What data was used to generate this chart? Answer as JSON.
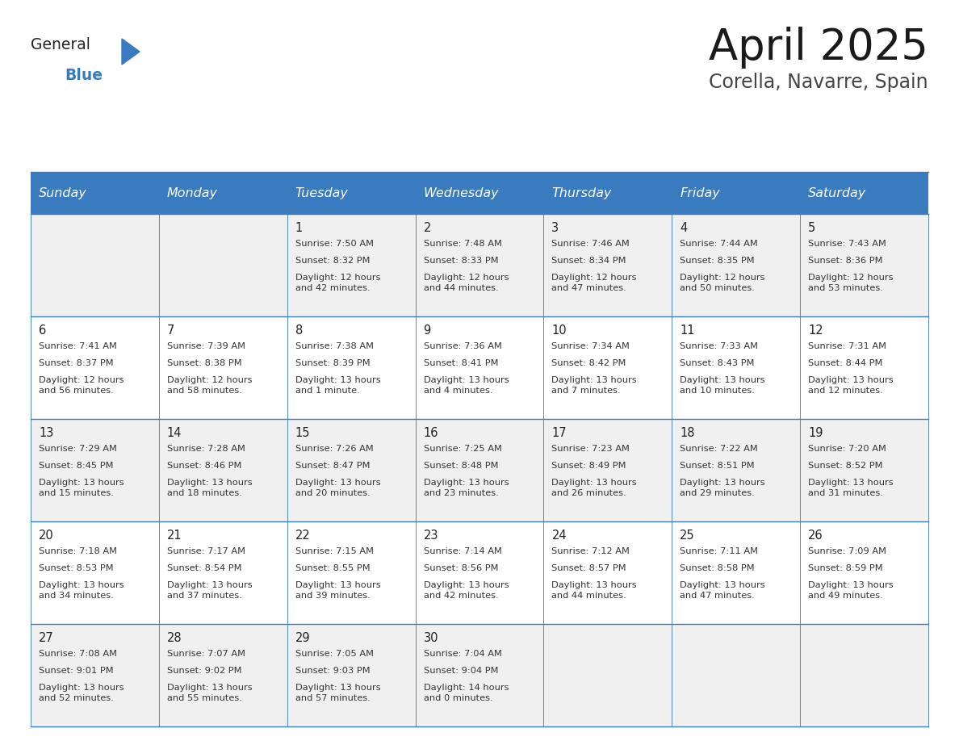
{
  "title": "April 2025",
  "subtitle": "Corella, Navarre, Spain",
  "header_bg": "#3a7abf",
  "header_text_color": "#ffffff",
  "cell_bg_odd": "#f0f0f0",
  "cell_bg_even": "#ffffff",
  "day_headers": [
    "Sunday",
    "Monday",
    "Tuesday",
    "Wednesday",
    "Thursday",
    "Friday",
    "Saturday"
  ],
  "weeks": [
    [
      {
        "day": "",
        "sunrise": "",
        "sunset": "",
        "daylight": ""
      },
      {
        "day": "",
        "sunrise": "",
        "sunset": "",
        "daylight": ""
      },
      {
        "day": "1",
        "sunrise": "Sunrise: 7:50 AM",
        "sunset": "Sunset: 8:32 PM",
        "daylight": "Daylight: 12 hours\nand 42 minutes."
      },
      {
        "day": "2",
        "sunrise": "Sunrise: 7:48 AM",
        "sunset": "Sunset: 8:33 PM",
        "daylight": "Daylight: 12 hours\nand 44 minutes."
      },
      {
        "day": "3",
        "sunrise": "Sunrise: 7:46 AM",
        "sunset": "Sunset: 8:34 PM",
        "daylight": "Daylight: 12 hours\nand 47 minutes."
      },
      {
        "day": "4",
        "sunrise": "Sunrise: 7:44 AM",
        "sunset": "Sunset: 8:35 PM",
        "daylight": "Daylight: 12 hours\nand 50 minutes."
      },
      {
        "day": "5",
        "sunrise": "Sunrise: 7:43 AM",
        "sunset": "Sunset: 8:36 PM",
        "daylight": "Daylight: 12 hours\nand 53 minutes."
      }
    ],
    [
      {
        "day": "6",
        "sunrise": "Sunrise: 7:41 AM",
        "sunset": "Sunset: 8:37 PM",
        "daylight": "Daylight: 12 hours\nand 56 minutes."
      },
      {
        "day": "7",
        "sunrise": "Sunrise: 7:39 AM",
        "sunset": "Sunset: 8:38 PM",
        "daylight": "Daylight: 12 hours\nand 58 minutes."
      },
      {
        "day": "8",
        "sunrise": "Sunrise: 7:38 AM",
        "sunset": "Sunset: 8:39 PM",
        "daylight": "Daylight: 13 hours\nand 1 minute."
      },
      {
        "day": "9",
        "sunrise": "Sunrise: 7:36 AM",
        "sunset": "Sunset: 8:41 PM",
        "daylight": "Daylight: 13 hours\nand 4 minutes."
      },
      {
        "day": "10",
        "sunrise": "Sunrise: 7:34 AM",
        "sunset": "Sunset: 8:42 PM",
        "daylight": "Daylight: 13 hours\nand 7 minutes."
      },
      {
        "day": "11",
        "sunrise": "Sunrise: 7:33 AM",
        "sunset": "Sunset: 8:43 PM",
        "daylight": "Daylight: 13 hours\nand 10 minutes."
      },
      {
        "day": "12",
        "sunrise": "Sunrise: 7:31 AM",
        "sunset": "Sunset: 8:44 PM",
        "daylight": "Daylight: 13 hours\nand 12 minutes."
      }
    ],
    [
      {
        "day": "13",
        "sunrise": "Sunrise: 7:29 AM",
        "sunset": "Sunset: 8:45 PM",
        "daylight": "Daylight: 13 hours\nand 15 minutes."
      },
      {
        "day": "14",
        "sunrise": "Sunrise: 7:28 AM",
        "sunset": "Sunset: 8:46 PM",
        "daylight": "Daylight: 13 hours\nand 18 minutes."
      },
      {
        "day": "15",
        "sunrise": "Sunrise: 7:26 AM",
        "sunset": "Sunset: 8:47 PM",
        "daylight": "Daylight: 13 hours\nand 20 minutes."
      },
      {
        "day": "16",
        "sunrise": "Sunrise: 7:25 AM",
        "sunset": "Sunset: 8:48 PM",
        "daylight": "Daylight: 13 hours\nand 23 minutes."
      },
      {
        "day": "17",
        "sunrise": "Sunrise: 7:23 AM",
        "sunset": "Sunset: 8:49 PM",
        "daylight": "Daylight: 13 hours\nand 26 minutes."
      },
      {
        "day": "18",
        "sunrise": "Sunrise: 7:22 AM",
        "sunset": "Sunset: 8:51 PM",
        "daylight": "Daylight: 13 hours\nand 29 minutes."
      },
      {
        "day": "19",
        "sunrise": "Sunrise: 7:20 AM",
        "sunset": "Sunset: 8:52 PM",
        "daylight": "Daylight: 13 hours\nand 31 minutes."
      }
    ],
    [
      {
        "day": "20",
        "sunrise": "Sunrise: 7:18 AM",
        "sunset": "Sunset: 8:53 PM",
        "daylight": "Daylight: 13 hours\nand 34 minutes."
      },
      {
        "day": "21",
        "sunrise": "Sunrise: 7:17 AM",
        "sunset": "Sunset: 8:54 PM",
        "daylight": "Daylight: 13 hours\nand 37 minutes."
      },
      {
        "day": "22",
        "sunrise": "Sunrise: 7:15 AM",
        "sunset": "Sunset: 8:55 PM",
        "daylight": "Daylight: 13 hours\nand 39 minutes."
      },
      {
        "day": "23",
        "sunrise": "Sunrise: 7:14 AM",
        "sunset": "Sunset: 8:56 PM",
        "daylight": "Daylight: 13 hours\nand 42 minutes."
      },
      {
        "day": "24",
        "sunrise": "Sunrise: 7:12 AM",
        "sunset": "Sunset: 8:57 PM",
        "daylight": "Daylight: 13 hours\nand 44 minutes."
      },
      {
        "day": "25",
        "sunrise": "Sunrise: 7:11 AM",
        "sunset": "Sunset: 8:58 PM",
        "daylight": "Daylight: 13 hours\nand 47 minutes."
      },
      {
        "day": "26",
        "sunrise": "Sunrise: 7:09 AM",
        "sunset": "Sunset: 8:59 PM",
        "daylight": "Daylight: 13 hours\nand 49 minutes."
      }
    ],
    [
      {
        "day": "27",
        "sunrise": "Sunrise: 7:08 AM",
        "sunset": "Sunset: 9:01 PM",
        "daylight": "Daylight: 13 hours\nand 52 minutes."
      },
      {
        "day": "28",
        "sunrise": "Sunrise: 7:07 AM",
        "sunset": "Sunset: 9:02 PM",
        "daylight": "Daylight: 13 hours\nand 55 minutes."
      },
      {
        "day": "29",
        "sunrise": "Sunrise: 7:05 AM",
        "sunset": "Sunset: 9:03 PM",
        "daylight": "Daylight: 13 hours\nand 57 minutes."
      },
      {
        "day": "30",
        "sunrise": "Sunrise: 7:04 AM",
        "sunset": "Sunset: 9:04 PM",
        "daylight": "Daylight: 14 hours\nand 0 minutes."
      },
      {
        "day": "",
        "sunrise": "",
        "sunset": "",
        "daylight": ""
      },
      {
        "day": "",
        "sunrise": "",
        "sunset": "",
        "daylight": ""
      },
      {
        "day": "",
        "sunrise": "",
        "sunset": "",
        "daylight": ""
      }
    ]
  ],
  "header_bg_color": "#3a7abf",
  "line_color": "#3a7abf",
  "title_fontsize": 38,
  "subtitle_fontsize": 17,
  "header_fontsize": 11.5,
  "day_num_fontsize": 10.5,
  "cell_text_fontsize": 8.2,
  "logo_general_color": "#222222",
  "logo_blue_color": "#3a7abf",
  "logo_triangle_color": "#3a7abf"
}
